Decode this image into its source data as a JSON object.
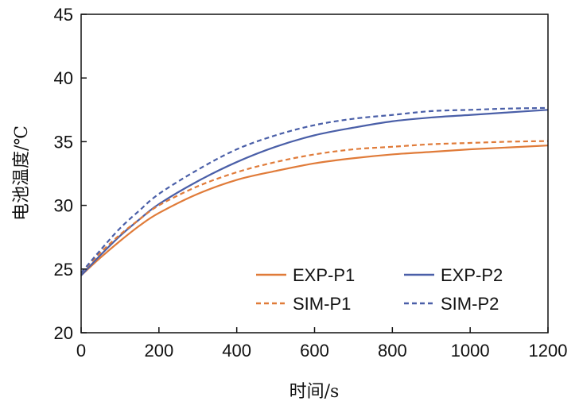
{
  "chart_data": {
    "type": "line",
    "title": "",
    "xlabel": "时间/s",
    "ylabel": "电池温度/℃",
    "xlim": [
      0,
      1200
    ],
    "ylim": [
      20,
      45
    ],
    "xticks": [
      0,
      200,
      400,
      600,
      800,
      1000,
      1200
    ],
    "yticks": [
      20,
      25,
      30,
      35,
      40,
      45
    ],
    "grid": false,
    "legend_position": "bottom-right",
    "series": [
      {
        "name": "EXP-P1",
        "color": "#E07B39",
        "style": "solid",
        "x": [
          0,
          50,
          100,
          150,
          200,
          300,
          400,
          500,
          600,
          700,
          800,
          900,
          1000,
          1100,
          1200
        ],
        "y": [
          24.5,
          25.9,
          27.2,
          28.4,
          29.4,
          30.9,
          32.0,
          32.7,
          33.3,
          33.7,
          34.0,
          34.2,
          34.4,
          34.55,
          34.7
        ]
      },
      {
        "name": "EXP-P2",
        "color": "#4A5FA8",
        "style": "solid",
        "x": [
          0,
          50,
          100,
          150,
          200,
          300,
          400,
          500,
          600,
          700,
          800,
          900,
          1000,
          1100,
          1200
        ],
        "y": [
          24.5,
          26.1,
          27.6,
          28.9,
          30.1,
          31.9,
          33.4,
          34.6,
          35.5,
          36.1,
          36.6,
          36.9,
          37.1,
          37.3,
          37.5
        ]
      },
      {
        "name": "SIM-P1",
        "color": "#E07B39",
        "style": "dashed",
        "x": [
          0,
          50,
          100,
          150,
          200,
          300,
          400,
          500,
          600,
          700,
          800,
          900,
          1000,
          1100,
          1200
        ],
        "y": [
          24.7,
          26.3,
          27.7,
          28.9,
          30.0,
          31.5,
          32.6,
          33.4,
          34.0,
          34.4,
          34.6,
          34.8,
          34.9,
          35.0,
          35.05
        ]
      },
      {
        "name": "SIM-P2",
        "color": "#4A5FA8",
        "style": "dashed",
        "x": [
          0,
          50,
          100,
          150,
          200,
          300,
          400,
          500,
          600,
          700,
          800,
          900,
          1000,
          1100,
          1200
        ],
        "y": [
          24.7,
          26.5,
          28.2,
          29.6,
          30.9,
          32.8,
          34.4,
          35.5,
          36.3,
          36.8,
          37.1,
          37.4,
          37.5,
          37.6,
          37.65
        ]
      }
    ]
  }
}
